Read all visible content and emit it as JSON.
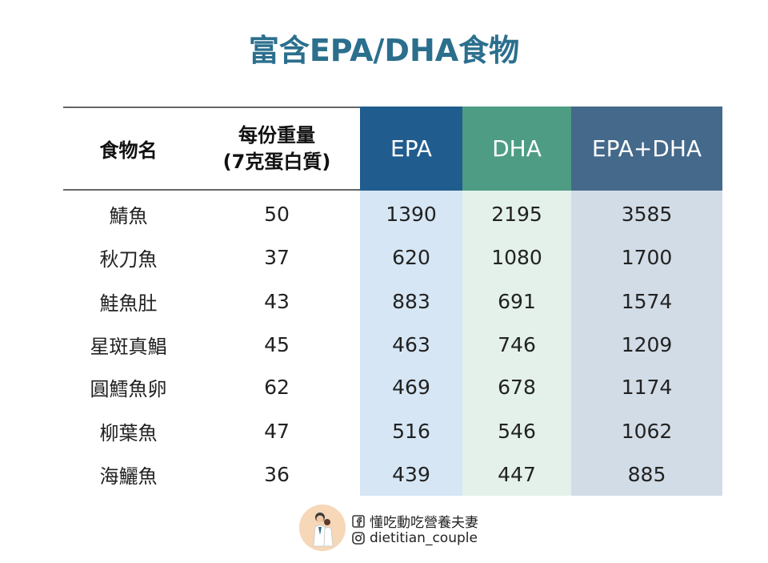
{
  "title": "富含EPA/DHA食物",
  "headers": {
    "food": "食物名",
    "serving_line1": "每份重量",
    "serving_line2": "(7克蛋白質)",
    "epa": "EPA",
    "dha": "DHA",
    "sum": "EPA+DHA"
  },
  "rows": [
    {
      "food": "鯖魚",
      "serving": "50",
      "epa": "1390",
      "dha": "2195",
      "sum": "3585"
    },
    {
      "food": "秋刀魚",
      "serving": "37",
      "epa": "620",
      "dha": "1080",
      "sum": "1700"
    },
    {
      "food": "鮭魚肚",
      "serving": "43",
      "epa": "883",
      "dha": "691",
      "sum": "1574"
    },
    {
      "food": "星斑真鯧",
      "serving": "45",
      "epa": "463",
      "dha": "746",
      "sum": "1209"
    },
    {
      "food": "圓鱈魚卵",
      "serving": "62",
      "epa": "469",
      "dha": "678",
      "sum": "1174"
    },
    {
      "food": "柳葉魚",
      "serving": "47",
      "epa": "516",
      "dha": "546",
      "sum": "1062"
    },
    {
      "food": "海鱺魚",
      "serving": "36",
      "epa": "439",
      "dha": "447",
      "sum": "885"
    }
  ],
  "footer": {
    "facebook_name": "懂吃動吃營養夫妻",
    "instagram_handle": "dietitian_couple"
  },
  "colors": {
    "title": "#2b6f8d",
    "epa_header": "#215c8e",
    "dha_header": "#4e9c83",
    "sum_header": "#45698b",
    "epa_body": "#d6e6f4",
    "dha_body": "#e3f1ea",
    "sum_body": "#d2dce7"
  }
}
